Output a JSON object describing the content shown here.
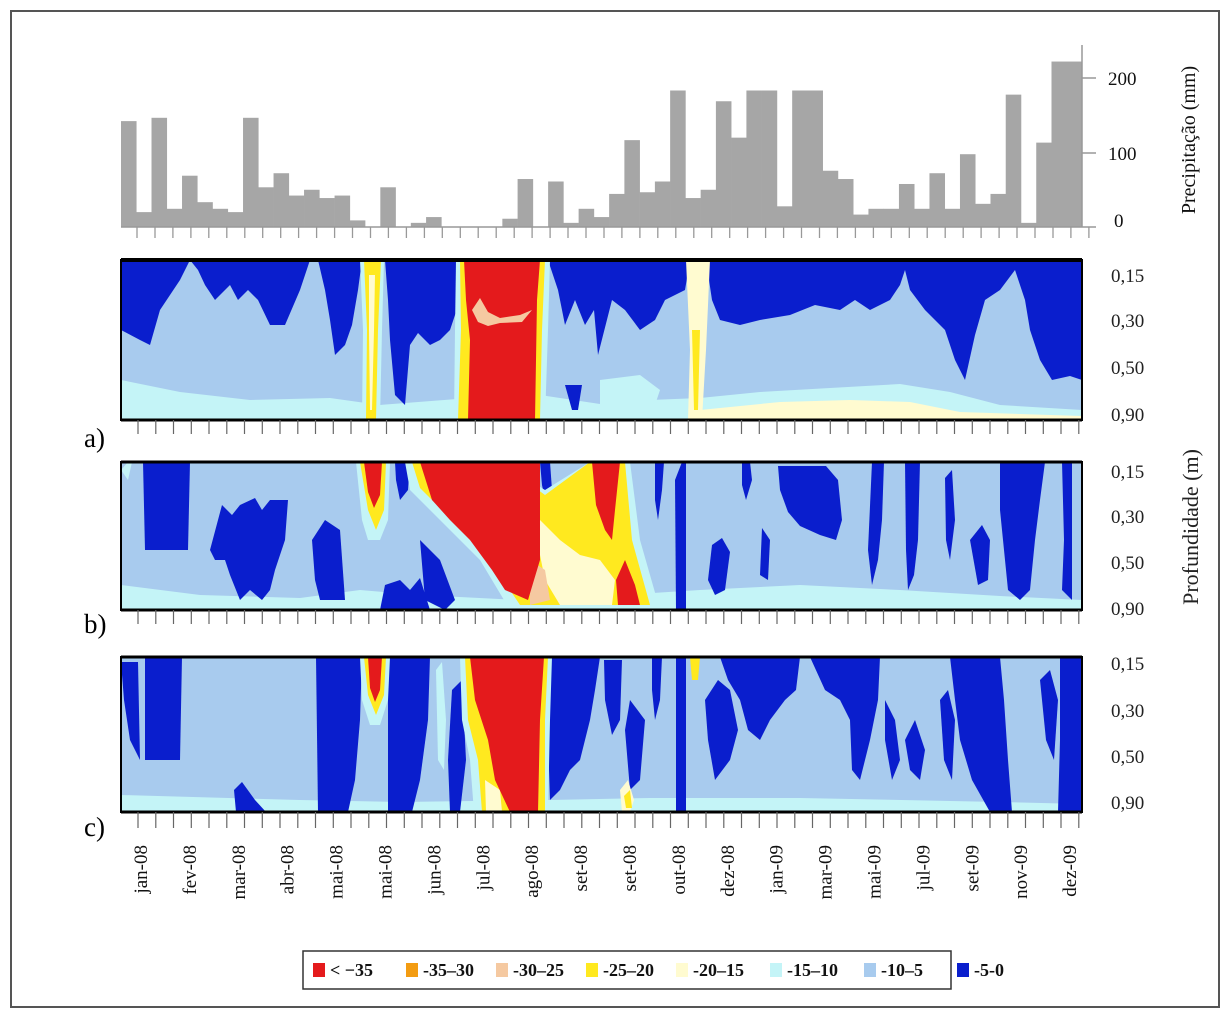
{
  "colors": {
    "lt35": "#e41a1c",
    "c35_30": "#f39c12",
    "c30_25": "#f5c9a1",
    "c25_20": "#ffe91f",
    "c20_15": "#fffbd0",
    "c15_10": "#c4f4f7",
    "c10_5": "#a8cbee",
    "c5_0": "#0a1ecd",
    "bars": "#a6a6a6"
  },
  "chart_data": [
    {
      "type": "bar",
      "ylabel": "Precipitação (mm)",
      "ylim": [
        0,
        220
      ],
      "yticks": [
        "200",
        "100",
        "0"
      ],
      "values": [
        128,
        18,
        132,
        22,
        62,
        30,
        22,
        18,
        132,
        48,
        65,
        38,
        45,
        35,
        38,
        8,
        0,
        48,
        0,
        5,
        12,
        0,
        0,
        0,
        0,
        10,
        58,
        0,
        55,
        5,
        22,
        12,
        40,
        105,
        42,
        55,
        165,
        35,
        45,
        152,
        108,
        165,
        165,
        25,
        165,
        165,
        68,
        58,
        15,
        22,
        22,
        52,
        22,
        65,
        22,
        88,
        28,
        40,
        160,
        5,
        102,
        200,
        200
      ]
    },
    {
      "type": "heatmap",
      "panels": [
        "a)",
        "b)",
        "c)"
      ],
      "ylabel": "Profundidade (m)",
      "depth_ticks": [
        "0,15",
        "0,30",
        "0,50",
        "0,90"
      ],
      "x_ticks": [
        "jan-08",
        "fev-08",
        "mar-08",
        "abr-08",
        "mai-08",
        "mai-08",
        "jun-08",
        "jul-08",
        "ago-08",
        "set-08",
        "set-08",
        "out-08",
        "dez-08",
        "jan-09",
        "mar-09",
        "mai-09",
        "jul-09",
        "set-09",
        "nov-09",
        "dez-09"
      ],
      "legend": [
        "< −35",
        "-35–30",
        "-30–25",
        "-25–20",
        "-20–15",
        "-15–10",
        "-10–5",
        "-5-0"
      ]
    }
  ]
}
